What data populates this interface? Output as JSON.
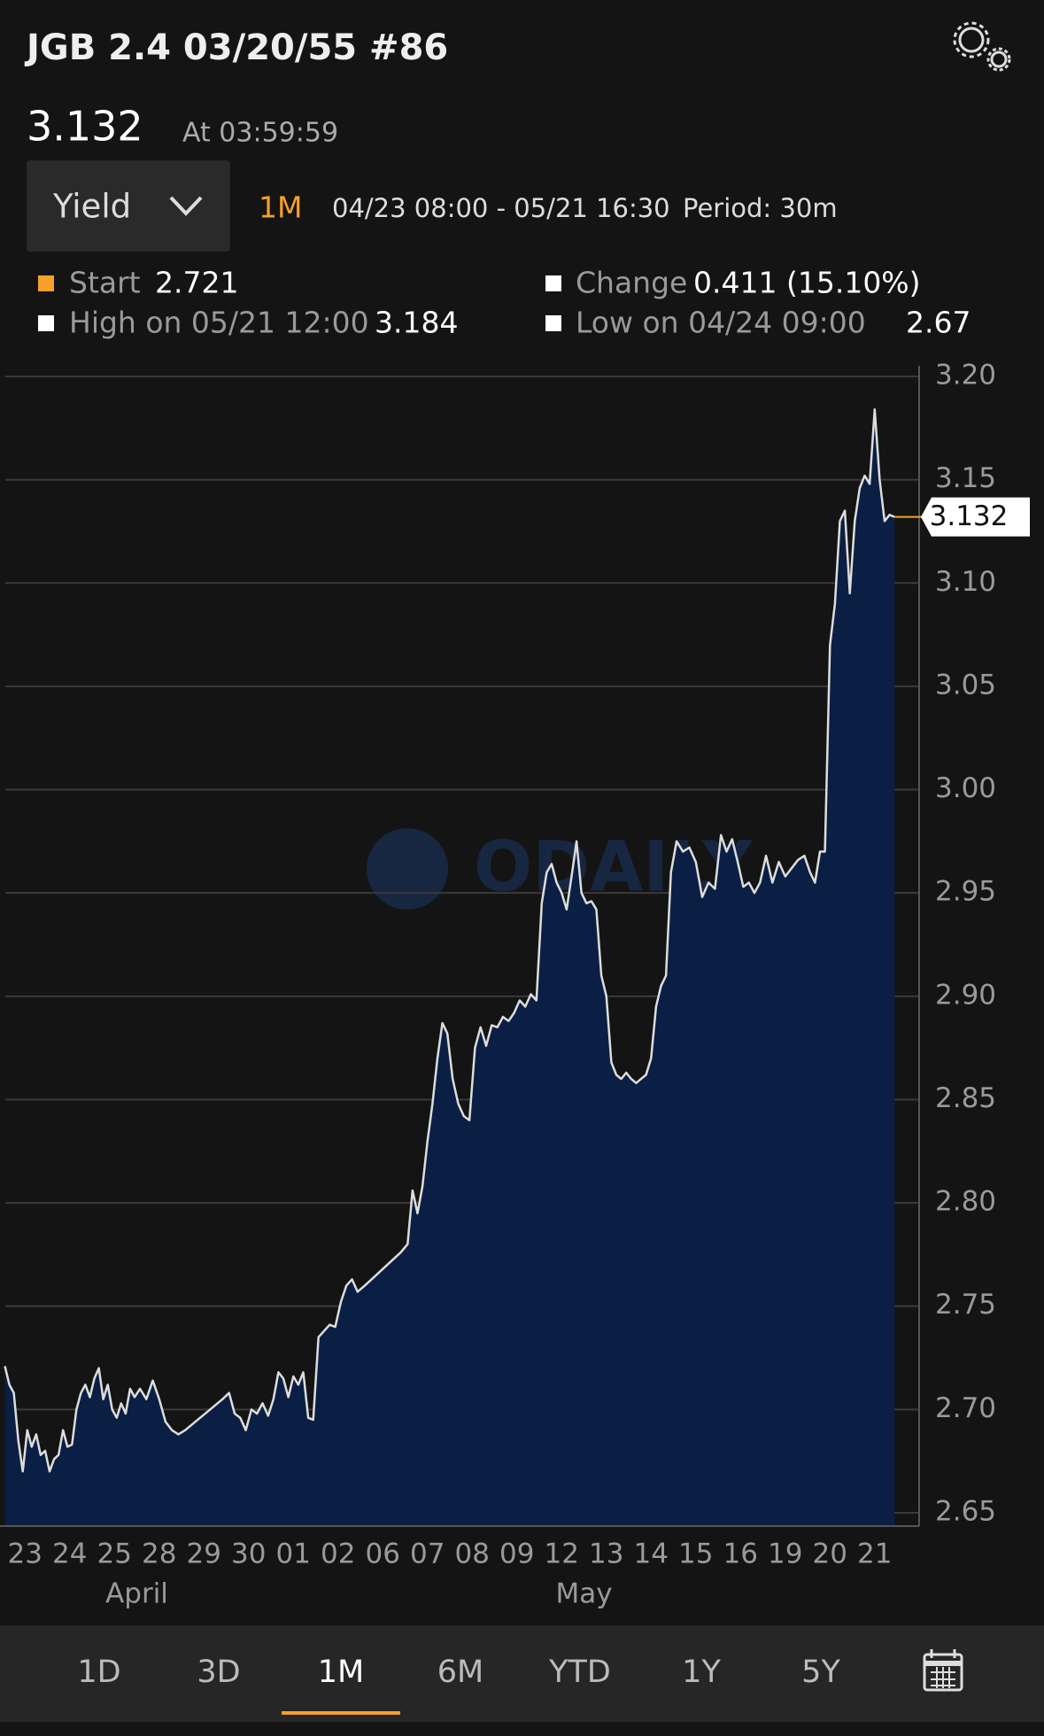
{
  "header": {
    "title": "JGB 2.4 03/20/55 #86",
    "price": "3.132",
    "time": "At 03:59:59",
    "dropdown": "Yield",
    "range_active": "1M",
    "range": "04/23 08:00 - 05/21 16:30",
    "period": "Period: 30m"
  },
  "stats": {
    "start_label": "Start",
    "start": 2.721,
    "change_label": "Change",
    "change": "0.411 (15.10%)",
    "high_label": "High on 05/21 12:00",
    "high": 3.184,
    "low_label": "Low on 04/24 09:00",
    "low": 2.67
  },
  "chart_data": {
    "type": "area",
    "watermark": "ODAILY",
    "line_color": "#dddddd",
    "fill_color": "#0b1f44",
    "grid": true,
    "categories": [
      "23",
      "24",
      "25",
      "28",
      "29",
      "30",
      "01",
      "02",
      "06",
      "07",
      "08",
      "09",
      "12",
      "13",
      "14",
      "15",
      "16",
      "19",
      "20",
      "21"
    ],
    "months": [
      "April",
      "May"
    ],
    "values": [
      [
        2.721,
        2.712,
        2.708,
        2.685,
        2.67,
        2.69,
        2.682,
        2.688,
        2.678,
        2.68
      ],
      [
        2.67,
        2.676,
        2.678,
        2.69,
        2.682,
        2.683,
        2.7,
        2.708,
        2.712,
        2.706
      ],
      [
        2.715,
        2.72,
        2.705,
        2.712,
        2.7,
        2.696,
        2.703,
        2.698,
        2.71,
        2.706
      ],
      [
        2.71,
        2.705,
        2.714,
        2.705,
        2.694,
        2.69,
        2.688
      ],
      [
        2.69,
        2.693,
        2.696,
        2.699,
        2.702,
        2.705
      ],
      [
        2.708,
        2.698,
        2.696,
        2.69,
        2.7,
        2.698,
        2.703,
        2.697
      ],
      [
        2.705,
        2.718,
        2.715,
        2.706,
        2.716,
        2.712,
        2.718,
        2.696,
        2.695
      ],
      [
        2.735,
        2.738,
        2.741,
        2.74,
        2.752,
        2.76,
        2.763,
        2.757
      ],
      [
        2.76,
        2.764,
        2.768,
        2.772,
        2.776
      ],
      [
        2.78,
        2.806,
        2.795,
        2.808,
        2.83,
        2.848,
        2.87,
        2.887,
        2.882
      ],
      [
        2.86,
        2.848,
        2.842,
        2.84,
        2.875,
        2.885,
        2.876,
        2.886
      ],
      [
        2.885,
        2.89,
        2.888,
        2.892,
        2.898,
        2.895,
        2.901,
        2.898
      ],
      [
        2.945,
        2.96,
        2.964,
        2.955,
        2.95,
        2.942,
        2.958,
        2.975,
        2.95
      ],
      [
        2.945,
        2.946,
        2.942,
        2.91,
        2.9,
        2.868,
        2.862,
        2.86,
        2.863
      ],
      [
        2.86,
        2.858,
        2.86,
        2.862,
        2.87,
        2.895,
        2.905,
        2.91,
        2.96
      ],
      [
        2.975,
        2.97,
        2.972,
        2.965,
        2.948,
        2.955,
        2.952
      ],
      [
        2.978,
        2.97,
        2.976,
        2.965,
        2.953,
        2.955,
        2.95,
        2.955
      ],
      [
        2.968,
        2.955,
        2.965,
        2.958,
        2.962,
        2.966,
        2.968
      ],
      [
        2.96,
        2.955,
        2.97,
        2.97,
        3.07,
        3.09,
        3.13,
        3.135,
        3.095
      ],
      [
        3.13,
        3.146,
        3.152,
        3.148,
        3.184,
        3.15,
        3.13,
        3.133,
        3.132
      ]
    ],
    "ylim": [
      2.65,
      3.2
    ],
    "yticks": [
      2.65,
      {
        "value": 2.7,
        "label": "2.70"
      },
      2.75,
      {
        "value": 2.8,
        "label": "2.80"
      },
      2.85,
      {
        "value": 2.9,
        "label": "2.90"
      },
      2.95,
      {
        "value": 3.0,
        "label": "3.00"
      },
      3.05,
      {
        "value": 3.1,
        "label": "3.10"
      },
      3.15,
      {
        "value": 3.2,
        "label": "3.20"
      }
    ]
  },
  "tabs": [
    "1D",
    "3D",
    "1M",
    "6M",
    "YTD",
    "1Y",
    "5Y"
  ],
  "active_tab": 2
}
